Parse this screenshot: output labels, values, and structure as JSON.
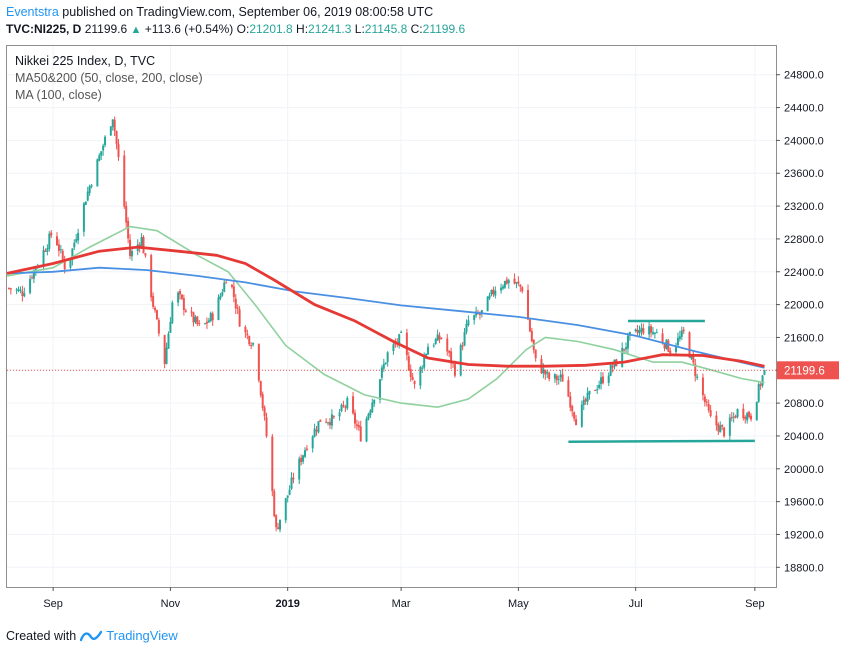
{
  "header": {
    "line1_user": "Eventstra",
    "line1_text": " published on TradingView.com, September 06, 2019 08:00:58 UTC",
    "symbol": "TVC:NI225, D",
    "price": "21199.6",
    "change": "+113.6 (+0.54%)",
    "o_label": "O:",
    "o_val": "21201.8",
    "h_label": "H:",
    "h_val": "21241.3",
    "l_label": "L:",
    "l_val": "21145.8",
    "c_label": "C:",
    "c_val": "21199.6"
  },
  "legend": {
    "title": "Nikkei 225 Index, D, TVC",
    "ma1": "MA50&200 (50, close, 200, close)",
    "ma2": "MA (100, close)"
  },
  "footer": {
    "created_with": "Created with",
    "brand": "TradingView"
  },
  "colors": {
    "up": "#26a69a",
    "down": "#ef5350",
    "ma50": "#8fd19e",
    "ma100": "#e53935",
    "ma200": "#4a90e2",
    "trendline": "#26a69a",
    "price_line": "#ef5350",
    "accent": "#2196f3"
  },
  "chart_data": {
    "type": "candlestick",
    "title": "Nikkei 225 Index, D, TVC",
    "y_axis": {
      "ticks": [
        18800,
        19200,
        19600,
        20000,
        20400,
        20800,
        21200,
        21600,
        22000,
        22400,
        22800,
        23200,
        23600,
        24000,
        24400,
        24800
      ],
      "range": [
        18560,
        25150
      ],
      "last_price": 21199.6,
      "last_price_label": "21199.6"
    },
    "x_axis": {
      "labels": [
        "Sep",
        "Nov",
        "2019",
        "Mar",
        "May",
        "Jul",
        "Sep"
      ],
      "label_months": [
        0,
        2,
        4,
        6,
        8,
        10,
        12
      ],
      "start": "2018-08-08",
      "end": "2019-09-12"
    },
    "price_path": [
      [
        "2018-08-09",
        22200
      ],
      [
        "2018-08-16",
        22150
      ],
      [
        "2018-08-24",
        22500
      ],
      [
        "2018-09-01",
        22900
      ],
      [
        "2018-09-08",
        22400
      ],
      [
        "2018-09-18",
        23300
      ],
      [
        "2018-09-25",
        23800
      ],
      [
        "2018-10-02",
        24300
      ],
      [
        "2018-10-06",
        23600
      ],
      [
        "2018-10-11",
        22600
      ],
      [
        "2018-10-17",
        22800
      ],
      [
        "2018-10-23",
        22000
      ],
      [
        "2018-10-29",
        21300
      ],
      [
        "2018-11-03",
        22200
      ],
      [
        "2018-11-10",
        21900
      ],
      [
        "2018-11-17",
        21700
      ],
      [
        "2018-11-24",
        21900
      ],
      [
        "2018-12-01",
        22400
      ],
      [
        "2018-12-08",
        21700
      ],
      [
        "2018-12-15",
        21500
      ],
      [
        "2018-12-21",
        20400
      ],
      [
        "2018-12-26",
        19250
      ],
      [
        "2019-01-04",
        19900
      ],
      [
        "2019-01-11",
        20300
      ],
      [
        "2019-01-18",
        20600
      ],
      [
        "2019-01-25",
        20600
      ],
      [
        "2019-02-01",
        20800
      ],
      [
        "2019-02-08",
        20400
      ],
      [
        "2019-02-15",
        20900
      ],
      [
        "2019-02-22",
        21400
      ],
      [
        "2019-03-01",
        21600
      ],
      [
        "2019-03-08",
        21000
      ],
      [
        "2019-03-15",
        21500
      ],
      [
        "2019-03-22",
        21600
      ],
      [
        "2019-03-29",
        21200
      ],
      [
        "2019-04-05",
        21800
      ],
      [
        "2019-04-12",
        21900
      ],
      [
        "2019-04-19",
        22200
      ],
      [
        "2019-04-26",
        22300
      ],
      [
        "2019-05-03",
        22200
      ],
      [
        "2019-05-10",
        21300
      ],
      [
        "2019-05-17",
        21100
      ],
      [
        "2019-05-24",
        21100
      ],
      [
        "2019-05-31",
        20600
      ],
      [
        "2019-06-07",
        20900
      ],
      [
        "2019-06-14",
        21100
      ],
      [
        "2019-06-21",
        21300
      ],
      [
        "2019-06-28",
        21600
      ],
      [
        "2019-07-05",
        21700
      ],
      [
        "2019-07-12",
        21650
      ],
      [
        "2019-07-19",
        21450
      ],
      [
        "2019-07-26",
        21650
      ],
      [
        "2019-08-02",
        21100
      ],
      [
        "2019-08-09",
        20600
      ],
      [
        "2019-08-16",
        20450
      ],
      [
        "2019-08-23",
        20700
      ],
      [
        "2019-08-30",
        20650
      ],
      [
        "2019-09-06",
        21199.6
      ]
    ],
    "ma50": [
      [
        "2018-08-08",
        22350
      ],
      [
        "2018-09-01",
        22450
      ],
      [
        "2018-09-20",
        22700
      ],
      [
        "2018-10-11",
        22950
      ],
      [
        "2018-10-25",
        22900
      ],
      [
        "2018-11-15",
        22600
      ],
      [
        "2018-12-01",
        22400
      ],
      [
        "2018-12-15",
        22000
      ],
      [
        "2018-12-31",
        21500
      ],
      [
        "2019-01-20",
        21150
      ],
      [
        "2019-02-10",
        20900
      ],
      [
        "2019-03-01",
        20800
      ],
      [
        "2019-03-20",
        20750
      ],
      [
        "2019-04-05",
        20850
      ],
      [
        "2019-04-20",
        21100
      ],
      [
        "2019-05-05",
        21450
      ],
      [
        "2019-05-15",
        21600
      ],
      [
        "2019-06-01",
        21550
      ],
      [
        "2019-06-20",
        21450
      ],
      [
        "2019-07-10",
        21300
      ],
      [
        "2019-07-25",
        21300
      ],
      [
        "2019-08-10",
        21200
      ],
      [
        "2019-08-25",
        21100
      ],
      [
        "2019-09-06",
        21050
      ]
    ],
    "ma100": [
      [
        "2018-08-08",
        22380
      ],
      [
        "2018-09-01",
        22500
      ],
      [
        "2018-09-25",
        22650
      ],
      [
        "2018-10-15",
        22700
      ],
      [
        "2018-11-05",
        22650
      ],
      [
        "2018-11-25",
        22600
      ],
      [
        "2018-12-10",
        22500
      ],
      [
        "2018-12-25",
        22300
      ],
      [
        "2019-01-15",
        22000
      ],
      [
        "2019-02-05",
        21800
      ],
      [
        "2019-02-25",
        21550
      ],
      [
        "2019-03-15",
        21350
      ],
      [
        "2019-04-05",
        21270
      ],
      [
        "2019-04-25",
        21250
      ],
      [
        "2019-05-15",
        21250
      ],
      [
        "2019-06-05",
        21260
      ],
      [
        "2019-06-25",
        21300
      ],
      [
        "2019-07-15",
        21390
      ],
      [
        "2019-08-05",
        21380
      ],
      [
        "2019-08-25",
        21310
      ],
      [
        "2019-09-06",
        21250
      ]
    ],
    "ma200": [
      [
        "2018-08-08",
        22380
      ],
      [
        "2018-09-01",
        22400
      ],
      [
        "2018-09-25",
        22450
      ],
      [
        "2018-10-20",
        22420
      ],
      [
        "2018-11-15",
        22350
      ],
      [
        "2018-12-10",
        22270
      ],
      [
        "2019-01-05",
        22160
      ],
      [
        "2019-02-01",
        22080
      ],
      [
        "2019-03-01",
        21990
      ],
      [
        "2019-04-01",
        21920
      ],
      [
        "2019-05-01",
        21850
      ],
      [
        "2019-06-01",
        21750
      ],
      [
        "2019-07-01",
        21620
      ],
      [
        "2019-08-01",
        21430
      ],
      [
        "2019-09-06",
        21230
      ]
    ],
    "trendlines": [
      {
        "from": [
          "2019-06-27",
          21800
        ],
        "to": [
          "2019-08-06",
          21800
        ]
      },
      {
        "from": [
          "2019-05-27",
          20330
        ],
        "to": [
          "2019-09-01",
          20340
        ]
      }
    ]
  }
}
